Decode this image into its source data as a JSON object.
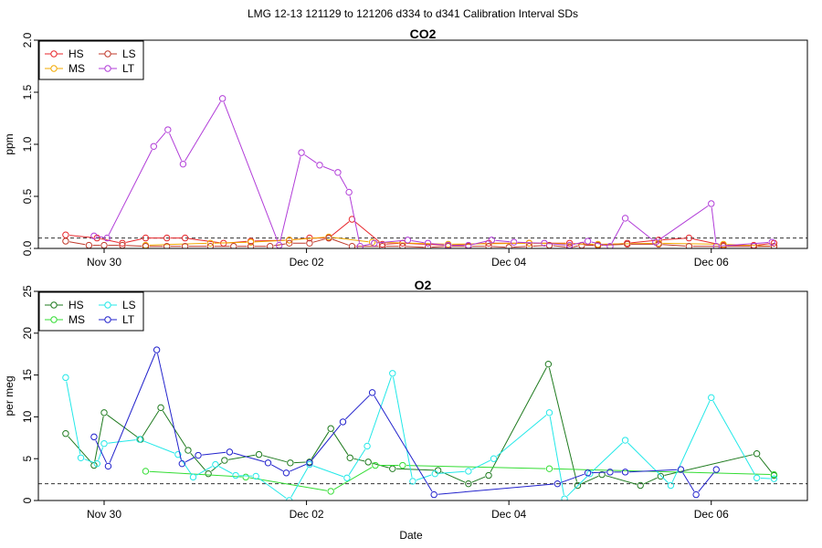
{
  "figure": {
    "title": "LMG   12-13    121129 to 121206    d334 to d341   Calibration Interval SDs",
    "xlabel": "Date"
  },
  "colors": {
    "HS_co2": "#e8262b",
    "MS_co2": "#f2a900",
    "LS_co2": "#c0392b",
    "LT_co2": "#b13cd8",
    "HS_o2": "#1e7a1e",
    "MS_o2": "#33dd33",
    "LS_o2": "#22e8e8",
    "LT_o2": "#2222cc",
    "reference": "#333333"
  },
  "chart_data": [
    {
      "type": "line",
      "title": "CO2",
      "ylabel": "ppm",
      "xlim": [
        29.35,
        36.95
      ],
      "ylim": [
        0,
        2.0
      ],
      "yticks": [
        0.0,
        0.5,
        1.0,
        1.5,
        2.0
      ],
      "ytick_labels": [
        "0.0",
        "0.5",
        "1.0",
        "1.5",
        "2.0"
      ],
      "xticks": [
        30,
        32,
        34,
        36
      ],
      "xtick_labels": [
        "Nov 30",
        "Dec 02",
        "Dec 04",
        "Dec 06"
      ],
      "reference_line": 0.1,
      "legend_position": "top-left",
      "legend": [
        "HS",
        "MS",
        "LS",
        "LT"
      ],
      "series": [
        {
          "name": "HS",
          "color_key": "HS_co2",
          "x": [
            29.62,
            29.93,
            30.18,
            30.41,
            30.62,
            30.8,
            31.18,
            31.45,
            31.83,
            32.03,
            32.22,
            32.45,
            32.75,
            32.95,
            33.4,
            33.8,
            34.2,
            34.6,
            34.88,
            35.17,
            35.48,
            35.78,
            36.12,
            36.42,
            36.62
          ],
          "y": [
            0.13,
            0.1,
            0.05,
            0.1,
            0.1,
            0.1,
            0.05,
            0.07,
            0.08,
            0.1,
            0.1,
            0.28,
            0.04,
            0.05,
            0.03,
            0.05,
            0.05,
            0.05,
            0.03,
            0.05,
            0.08,
            0.1,
            0.03,
            0.03,
            0.05
          ]
        },
        {
          "name": "MS",
          "color_key": "MS_co2",
          "x": [
            30.41,
            31.05,
            31.45,
            31.83,
            32.22,
            32.65,
            33.4,
            34.2,
            34.88,
            35.48,
            36.12,
            36.62
          ],
          "y": [
            0.03,
            0.05,
            0.06,
            0.08,
            0.11,
            0.06,
            0.04,
            0.05,
            0.04,
            0.05,
            0.04,
            0.02
          ]
        },
        {
          "name": "LS",
          "color_key": "LS_co2",
          "x": [
            29.62,
            29.85,
            30.0,
            30.18,
            30.41,
            30.62,
            30.8,
            31.05,
            31.28,
            31.45,
            31.64,
            31.83,
            32.03,
            32.22,
            32.45,
            32.75,
            32.95,
            33.2,
            33.4,
            33.6,
            33.8,
            34.0,
            34.2,
            34.4,
            34.6,
            34.72,
            34.88,
            35.17,
            35.48,
            35.78,
            36.12,
            36.42,
            36.62
          ],
          "y": [
            0.07,
            0.03,
            0.03,
            0.03,
            0.02,
            0.02,
            0.02,
            0.02,
            0.02,
            0.02,
            0.02,
            0.05,
            0.05,
            0.1,
            0.02,
            0.02,
            0.02,
            0.01,
            0.02,
            0.02,
            0.02,
            0.01,
            0.02,
            0.03,
            0.01,
            0.03,
            0.03,
            0.04,
            0.04,
            0.02,
            0.02,
            0.02,
            0.02
          ]
        },
        {
          "name": "LT",
          "color_key": "LT_co2",
          "x": [
            29.9,
            30.03,
            30.49,
            30.63,
            30.78,
            31.17,
            31.73,
            31.95,
            32.13,
            32.31,
            32.42,
            32.53,
            32.67,
            33.0,
            33.2,
            33.4,
            33.6,
            33.83,
            34.05,
            34.35,
            34.6,
            34.78,
            35.0,
            35.15,
            35.45,
            36.0,
            36.05,
            36.6
          ],
          "y": [
            0.12,
            0.1,
            0.98,
            1.14,
            0.81,
            1.44,
            0.03,
            0.92,
            0.8,
            0.73,
            0.54,
            0.02,
            0.05,
            0.08,
            0.05,
            0.03,
            0.03,
            0.08,
            0.06,
            0.05,
            0.03,
            0.07,
            0.02,
            0.29,
            0.06,
            0.43,
            0.02,
            0.06
          ]
        }
      ]
    },
    {
      "type": "line",
      "title": "O2",
      "ylabel": "per meg",
      "xlim": [
        29.35,
        36.95
      ],
      "ylim": [
        0,
        25
      ],
      "yticks": [
        0,
        5,
        10,
        15,
        20,
        25
      ],
      "ytick_labels": [
        "0",
        "5",
        "10",
        "15",
        "20",
        "25"
      ],
      "xticks": [
        30,
        32,
        34,
        36
      ],
      "xtick_labels": [
        "Nov 30",
        "Dec 02",
        "Dec 04",
        "Dec 06"
      ],
      "reference_line": 2.0,
      "legend_position": "top-left",
      "legend": [
        "HS",
        "MS",
        "LS",
        "LT"
      ],
      "series": [
        {
          "name": "HS",
          "color_key": "HS_o2",
          "x": [
            29.62,
            29.9,
            30.0,
            30.36,
            30.56,
            30.83,
            31.03,
            31.19,
            31.53,
            31.84,
            32.03,
            32.24,
            32.43,
            32.61,
            32.85,
            33.3,
            33.6,
            33.8,
            34.39,
            34.68,
            34.92,
            35.3,
            35.5,
            36.45,
            36.62
          ],
          "y": [
            8.0,
            4.2,
            10.5,
            7.3,
            11.1,
            6.0,
            3.2,
            4.8,
            5.5,
            4.5,
            4.6,
            8.6,
            5.1,
            4.6,
            3.8,
            3.6,
            2.0,
            3.0,
            16.3,
            1.8,
            3.1,
            1.8,
            2.9,
            5.6,
            3.0
          ]
        },
        {
          "name": "MS",
          "color_key": "MS_o2",
          "x": [
            30.41,
            31.4,
            32.24,
            32.68,
            32.95,
            34.4,
            36.62
          ],
          "y": [
            3.5,
            2.8,
            1.1,
            4.2,
            4.2,
            3.8,
            3.1
          ]
        },
        {
          "name": "LS",
          "color_key": "LS_o2",
          "x": [
            29.62,
            29.77,
            29.93,
            30.0,
            30.35,
            30.73,
            30.88,
            31.1,
            31.3,
            31.5,
            31.83,
            32.03,
            32.4,
            32.6,
            32.85,
            33.05,
            33.27,
            33.6,
            33.85,
            34.4,
            34.55,
            34.8,
            35.15,
            35.6,
            36.0,
            36.45,
            36.62
          ],
          "y": [
            14.7,
            5.1,
            4.4,
            6.8,
            7.3,
            5.5,
            2.8,
            4.3,
            3.0,
            2.9,
            0.0,
            4.3,
            2.7,
            6.5,
            15.2,
            2.3,
            3.2,
            3.5,
            5.0,
            10.5,
            0.2,
            3.2,
            7.2,
            1.8,
            12.3,
            2.7,
            2.6
          ]
        },
        {
          "name": "LT",
          "color_key": "LT_o2",
          "x": [
            29.9,
            30.04,
            30.52,
            30.77,
            30.93,
            31.24,
            31.62,
            31.8,
            32.03,
            32.36,
            32.65,
            33.26,
            34.48,
            34.78,
            35.0,
            35.15,
            35.7,
            35.85,
            36.05
          ],
          "y": [
            7.6,
            4.1,
            18.0,
            4.4,
            5.4,
            5.8,
            4.5,
            3.3,
            4.5,
            9.4,
            12.9,
            0.7,
            2.0,
            3.3,
            3.4,
            3.4,
            3.7,
            0.7,
            3.7
          ]
        }
      ]
    }
  ]
}
